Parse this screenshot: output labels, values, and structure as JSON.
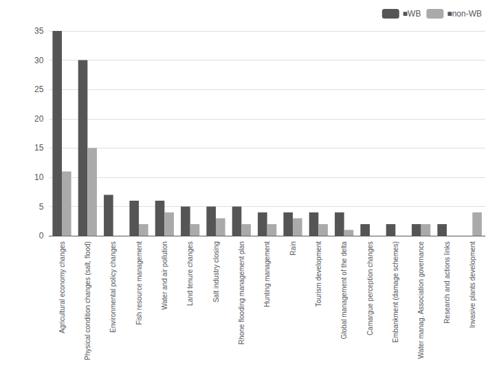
{
  "chart_data": {
    "type": "bar",
    "categories": [
      "Agricultural economy changes",
      "Physical condition changes (salt, flood)",
      "Environmental policy changes",
      "Fish resource management",
      "Water and air pollution",
      "Land tenure changes",
      "Salt industry closing",
      "Rhone flooding management plan",
      "Hunting management",
      "Rain",
      "Tourism development",
      "Global management of the delta",
      "Camargue perception changes",
      "Embankment (damage schemes)",
      "Water manag. Association governance",
      "Research and actions links",
      "Invasive plants development"
    ],
    "series": [
      {
        "name": "■WB",
        "color": "#555555",
        "values": [
          35,
          30,
          7,
          6,
          6,
          5,
          5,
          5,
          4,
          4,
          4,
          4,
          2,
          2,
          2,
          2,
          0
        ]
      },
      {
        "name": "■non-WB",
        "color": "#aaaaaa",
        "values": [
          11,
          15,
          0,
          2,
          4,
          2,
          3,
          2,
          2,
          3,
          2,
          1,
          0,
          0,
          2,
          0,
          4
        ]
      }
    ],
    "ylim": [
      0,
      35
    ],
    "yticks": [
      0,
      5,
      10,
      15,
      20,
      25,
      30,
      35
    ],
    "grid": true,
    "legend": "upper right"
  }
}
